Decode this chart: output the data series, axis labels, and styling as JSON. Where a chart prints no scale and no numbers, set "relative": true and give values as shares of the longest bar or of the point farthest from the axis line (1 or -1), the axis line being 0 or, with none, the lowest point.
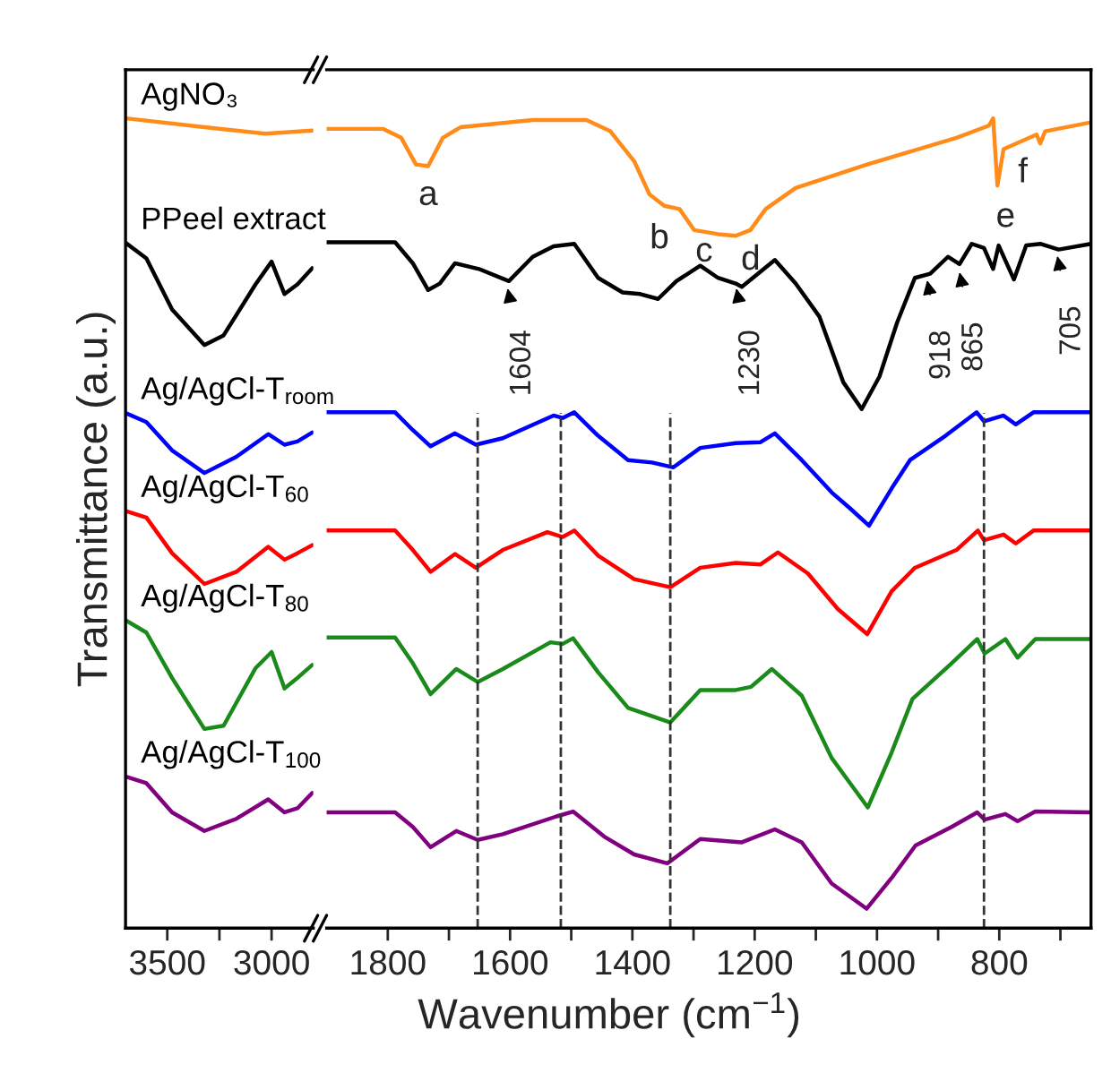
{
  "chart_data": [
    {
      "type": "line",
      "relative": true,
      "ylabel": "Transmittance (a.u.)",
      "xlim": [
        3700,
        2800
      ],
      "xticks": [
        3500,
        {
          "value": 3250,
          "label": null
        },
        3000
      ],
      "series": [
        {
          "name": "AgNO₃",
          "color": "#ff8c1a",
          "x": [
            3698,
            3322,
            3030,
            2805
          ],
          "values": [
            1.0,
            0.989,
            0.981,
            0.985
          ]
        },
        {
          "name": "PPeel extract",
          "color": "#000000",
          "x": [
            3698,
            3600,
            3477,
            3322,
            3230,
            3077,
            3000,
            2938,
            2876,
            2805
          ],
          "values": [
            0.846,
            0.827,
            0.764,
            0.72,
            0.732,
            0.795,
            0.823,
            0.783,
            0.795,
            0.815
          ]
        },
        {
          "name": "Ag/AgCl-T$_{room}$",
          "color": "#0000ff",
          "x": [
            3698,
            3600,
            3477,
            3322,
            3169,
            3016,
            2938,
            2876,
            2805
          ],
          "values": [
            0.636,
            0.625,
            0.59,
            0.562,
            0.582,
            0.61,
            0.597,
            0.601,
            0.612
          ]
        },
        {
          "name": "Ag/AgCl-T$_{60}$",
          "color": "#ff0000",
          "x": [
            3698,
            3600,
            3477,
            3322,
            3169,
            3016,
            2938,
            2876,
            2805
          ],
          "values": [
            0.515,
            0.507,
            0.463,
            0.425,
            0.44,
            0.471,
            0.455,
            0.463,
            0.473
          ]
        },
        {
          "name": "Ag/AgCl-T$_{80}$",
          "color": "#1a8a1a",
          "x": [
            3698,
            3600,
            3477,
            3322,
            3230,
            3077,
            3000,
            2938,
            2876,
            2805
          ],
          "values": [
            0.38,
            0.365,
            0.309,
            0.246,
            0.25,
            0.321,
            0.341,
            0.296,
            0.309,
            0.325
          ]
        },
        {
          "name": "Ag/AgCl-T$_{100}$",
          "color": "#800080",
          "x": [
            3698,
            3600,
            3477,
            3322,
            3169,
            3016,
            2938,
            2876,
            2805
          ],
          "values": [
            0.187,
            0.179,
            0.143,
            0.12,
            0.135,
            0.159,
            0.143,
            0.148,
            0.167
          ]
        }
      ]
    },
    {
      "type": "line",
      "relative": true,
      "xlabel": "Wavenumber (cm$^{−1}$)",
      "xlim": [
        1900,
        650
      ],
      "xticks": [
        1800,
        {
          "value": 1700,
          "label": null
        },
        1600,
        {
          "value": 1500,
          "label": null
        },
        1400,
        {
          "value": 1300,
          "label": null
        },
        1200,
        {
          "value": 1100,
          "label": null
        },
        1000,
        {
          "value": 900,
          "label": null
        },
        800,
        {
          "value": 700,
          "label": null
        }
      ],
      "series": [
        {
          "color": "#ff8c1a",
          "x": [
            1900,
            1808,
            1778,
            1754,
            1734,
            1710,
            1681,
            1563,
            1475,
            1436,
            1397,
            1372,
            1348,
            1323,
            1299,
            1260,
            1231,
            1207,
            1182,
            1133,
            1016,
            870,
            817,
            810,
            803,
            793,
            739,
            733,
            725,
            650
          ],
          "values": [
            0.987,
            0.987,
            0.976,
            0.943,
            0.941,
            0.976,
            0.989,
            0.998,
            0.998,
            0.984,
            0.947,
            0.906,
            0.892,
            0.888,
            0.862,
            0.857,
            0.855,
            0.862,
            0.888,
            0.914,
            0.943,
            0.976,
            0.991,
            1.0,
            0.917,
            0.962,
            0.98,
            0.969,
            0.984,
            0.995
          ]
        },
        {
          "color": "#000000",
          "x": [
            1900,
            1788,
            1759,
            1734,
            1715,
            1690,
            1651,
            1602,
            1563,
            1529,
            1495,
            1456,
            1416,
            1387,
            1358,
            1328,
            1289,
            1260,
            1231,
            1221,
            1167,
            1133,
            1094,
            1055,
            1025,
            996,
            967,
            938,
            913,
            884,
            865,
            845,
            825,
            810,
            801,
            776,
            756,
            732,
            703,
            650
          ],
          "values": [
            0.847,
            0.847,
            0.821,
            0.788,
            0.796,
            0.821,
            0.814,
            0.799,
            0.829,
            0.842,
            0.845,
            0.803,
            0.785,
            0.783,
            0.777,
            0.799,
            0.818,
            0.803,
            0.796,
            0.792,
            0.825,
            0.796,
            0.755,
            0.674,
            0.641,
            0.681,
            0.748,
            0.803,
            0.808,
            0.829,
            0.82,
            0.845,
            0.84,
            0.814,
            0.843,
            0.801,
            0.843,
            0.845,
            0.838,
            0.845
          ]
        },
        {
          "color": "#0000ff",
          "x": [
            1900,
            1788,
            1759,
            1730,
            1690,
            1656,
            1612,
            1529,
            1514,
            1495,
            1456,
            1407,
            1368,
            1333,
            1289,
            1231,
            1191,
            1167,
            1123,
            1074,
            1045,
            1013,
            976,
            946,
            888,
            837,
            825,
            793,
            773,
            744,
            650
          ],
          "values": [
            0.637,
            0.637,
            0.615,
            0.595,
            0.611,
            0.597,
            0.605,
            0.633,
            0.63,
            0.637,
            0.608,
            0.578,
            0.575,
            0.569,
            0.593,
            0.599,
            0.6,
            0.611,
            0.578,
            0.538,
            0.519,
            0.497,
            0.543,
            0.578,
            0.608,
            0.637,
            0.626,
            0.633,
            0.622,
            0.637,
            0.637
          ]
        },
        {
          "color": "#ff0000",
          "x": [
            1900,
            1788,
            1759,
            1730,
            1690,
            1656,
            1612,
            1539,
            1514,
            1495,
            1456,
            1397,
            1338,
            1289,
            1231,
            1191,
            1162,
            1113,
            1064,
            1016,
            976,
            938,
            870,
            835,
            825,
            793,
            773,
            744,
            650
          ],
          "values": [
            0.491,
            0.491,
            0.467,
            0.44,
            0.462,
            0.445,
            0.467,
            0.489,
            0.483,
            0.491,
            0.46,
            0.431,
            0.421,
            0.445,
            0.451,
            0.449,
            0.464,
            0.438,
            0.394,
            0.363,
            0.416,
            0.445,
            0.467,
            0.491,
            0.479,
            0.486,
            0.475,
            0.491,
            0.491
          ]
        },
        {
          "color": "#1a8a1a",
          "x": [
            1900,
            1788,
            1759,
            1730,
            1688,
            1653,
            1612,
            1534,
            1514,
            1497,
            1456,
            1407,
            1338,
            1289,
            1231,
            1206,
            1172,
            1123,
            1074,
            1045,
            1015,
            976,
            942,
            878,
            836,
            824,
            790,
            770,
            741,
            650
          ],
          "values": [
            0.359,
            0.359,
            0.327,
            0.289,
            0.32,
            0.304,
            0.32,
            0.353,
            0.351,
            0.358,
            0.316,
            0.272,
            0.254,
            0.294,
            0.294,
            0.298,
            0.32,
            0.287,
            0.21,
            0.18,
            0.149,
            0.217,
            0.283,
            0.327,
            0.357,
            0.339,
            0.357,
            0.334,
            0.357,
            0.357
          ]
        },
        {
          "color": "#800080",
          "x": [
            1900,
            1788,
            1759,
            1730,
            1688,
            1653,
            1612,
            1524,
            1497,
            1446,
            1397,
            1343,
            1289,
            1221,
            1167,
            1123,
            1074,
            1017,
            976,
            937,
            878,
            836,
            824,
            790,
            770,
            741,
            650
          ],
          "values": [
            0.143,
            0.143,
            0.125,
            0.1,
            0.12,
            0.109,
            0.116,
            0.138,
            0.144,
            0.113,
            0.091,
            0.08,
            0.11,
            0.106,
            0.122,
            0.106,
            0.055,
            0.024,
            0.062,
            0.102,
            0.125,
            0.143,
            0.134,
            0.141,
            0.132,
            0.144,
            0.143
          ]
        }
      ],
      "ref_lines": [
        {
          "axis": "x",
          "value": 1653,
          "color": "#333333",
          "line_style": "dashed"
        },
        {
          "axis": "x",
          "value": 1517,
          "color": "#333333",
          "line_style": "dashed"
        },
        {
          "axis": "x",
          "value": 1338,
          "color": "#333333",
          "line_style": "dashed"
        },
        {
          "axis": "x",
          "value": 825,
          "color": "#333333",
          "line_style": "dashed"
        }
      ],
      "annotations": [
        {
          "text": "a",
          "x": 1734,
          "y": 0.941
        },
        {
          "text": "b",
          "x": 1372,
          "y": 0.906
        },
        {
          "text": "c",
          "x": 1299,
          "y": 0.862
        },
        {
          "text": "d",
          "x": 1231,
          "y": 0.855
        },
        {
          "text": "e",
          "x": 810,
          "y": 1.0
        },
        {
          "text": "f",
          "x": 733,
          "y": 0.969
        },
        {
          "text": "1604",
          "x": 1604,
          "y": 0.79
        },
        {
          "text": "1230",
          "x": 1230,
          "y": 0.79
        },
        {
          "text": "918",
          "x": 918,
          "y": 0.8
        },
        {
          "text": "865",
          "x": 865,
          "y": 0.81
        },
        {
          "text": "705",
          "x": 705,
          "y": 0.83
        }
      ]
    }
  ]
}
